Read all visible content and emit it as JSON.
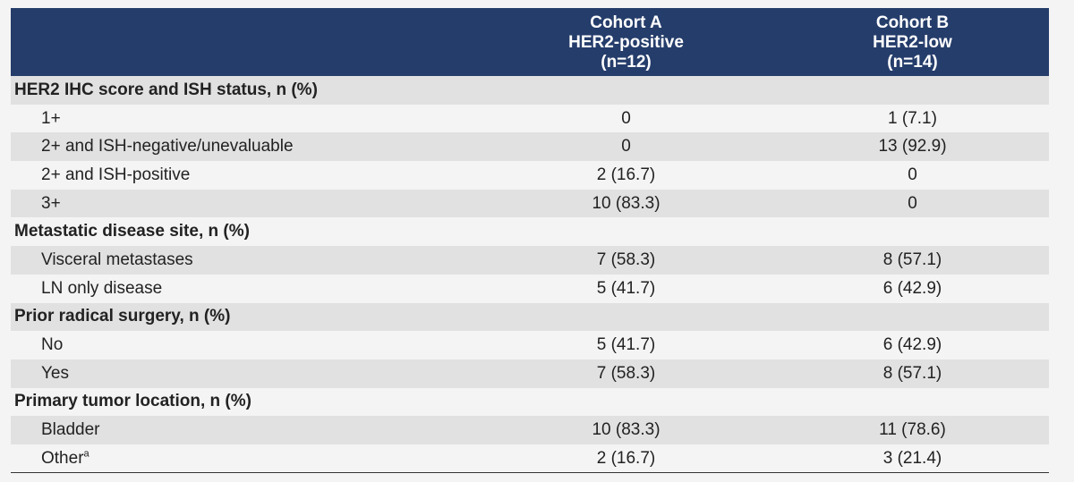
{
  "header": {
    "col_label": "",
    "cohort_a": {
      "line1": "Cohort A",
      "line2": "HER2-positive",
      "line3": "(n=12)"
    },
    "cohort_b": {
      "line1": "Cohort B",
      "line2": "HER2-low",
      "line3": "(n=14)"
    }
  },
  "rows": [
    {
      "label": "HER2 IHC score and ISH status, n (%)",
      "a": "",
      "b": ""
    },
    {
      "label": "1+",
      "a": "0",
      "b": "1 (7.1)"
    },
    {
      "label": "2+ and ISH-negative/unevaluable",
      "a": "0",
      "b": "13 (92.9)"
    },
    {
      "label": "2+ and ISH-positive",
      "a": "2 (16.7)",
      "b": "0"
    },
    {
      "label": "3+",
      "a": "10 (83.3)",
      "b": "0"
    },
    {
      "label": "Metastatic disease site, n (%)",
      "a": "",
      "b": ""
    },
    {
      "label": "Visceral metastases",
      "a": "7 (58.3)",
      "b": "8 (57.1)"
    },
    {
      "label": "LN only disease",
      "a": "5 (41.7)",
      "b": "6 (42.9)"
    },
    {
      "label": "Prior radical surgery, n (%)",
      "a": "",
      "b": ""
    },
    {
      "label": "No",
      "a": "5 (41.7)",
      "b": "6 (42.9)"
    },
    {
      "label": "Yes",
      "a": "7 (58.3)",
      "b": "8 (57.1)"
    },
    {
      "label": "Primary tumor location, n (%)",
      "a": "",
      "b": ""
    },
    {
      "label": "Bladder",
      "a": "10 (83.3)",
      "b": "11 (78.6)"
    },
    {
      "label": "Other",
      "footnote": "a",
      "a": "2 (16.7)",
      "b": "3 (21.4)"
    }
  ]
}
